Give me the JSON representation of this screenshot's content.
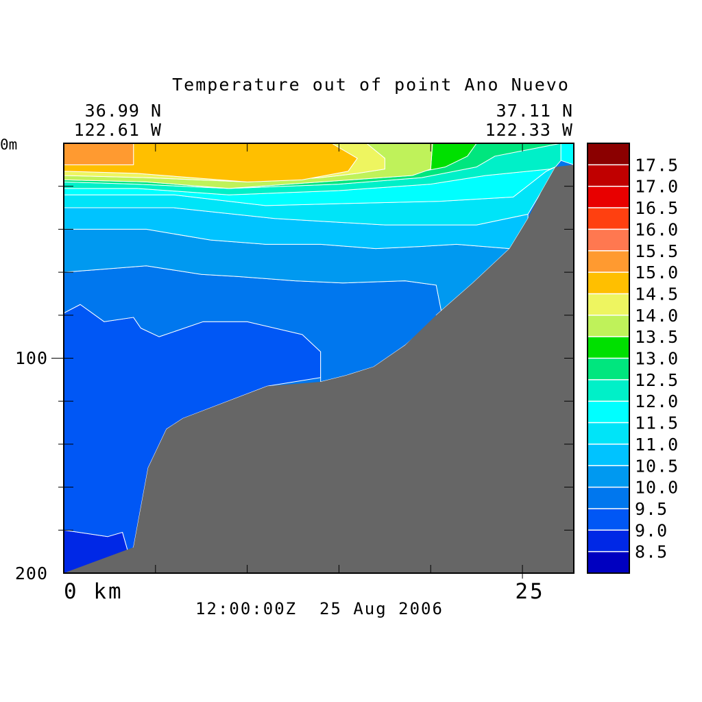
{
  "chart_data": {
    "type": "heatmap",
    "title": "Temperature out of point Ano Nuevo",
    "left_endpoint": {
      "lat": "36.99 N",
      "lon": "122.61 W"
    },
    "right_endpoint": {
      "lat": "37.11 N",
      "lon": "122.33 W"
    },
    "y_axis": {
      "unit_label": "0m",
      "tick_labels": [
        "100",
        "200"
      ],
      "range": [
        0,
        200
      ],
      "inverted": true,
      "unit": "m"
    },
    "x_axis": {
      "start_label": "0 km",
      "end_label": "25",
      "range": [
        0,
        27.8
      ],
      "unit": "km"
    },
    "timestamp": "12:00:00Z  25 Aug 2006",
    "colorbar": {
      "levels": [
        "17.5",
        "17.0",
        "16.5",
        "16.0",
        "15.5",
        "15.0",
        "14.5",
        "14.0",
        "13.5",
        "13.0",
        "12.5",
        "12.0",
        "11.5",
        "11.0",
        "10.5",
        "10.0",
        "9.5",
        "9.0",
        "8.5"
      ],
      "colors": [
        "#8b0000",
        "#c00000",
        "#e80000",
        "#ff4010",
        "#ff7850",
        "#ff9a30",
        "#ffbf00",
        "#eef560",
        "#bff25a",
        "#00e000",
        "#00e67e",
        "#00f0c8",
        "#00ffff",
        "#00e4f8",
        "#00c3ff",
        "#0099f0",
        "#0077ee",
        "#0057f5",
        "#0028e6",
        "#0000c0"
      ]
    },
    "bathymetry_color": "#666666",
    "section_profile": [
      {
        "x": 0.0,
        "bottom_depth": 200
      },
      {
        "x": 3.8,
        "bottom_depth": 188
      },
      {
        "x": 4.6,
        "bottom_depth": 151
      },
      {
        "x": 5.6,
        "bottom_depth": 133
      },
      {
        "x": 6.5,
        "bottom_depth": 128
      },
      {
        "x": 11.1,
        "bottom_depth": 113
      },
      {
        "x": 14.0,
        "bottom_depth": 111
      },
      {
        "x": 15.4,
        "bottom_depth": 108
      },
      {
        "x": 16.9,
        "bottom_depth": 104
      },
      {
        "x": 18.6,
        "bottom_depth": 94
      },
      {
        "x": 20.3,
        "bottom_depth": 80
      },
      {
        "x": 22.3,
        "bottom_depth": 65
      },
      {
        "x": 24.3,
        "bottom_depth": 49
      },
      {
        "x": 25.3,
        "bottom_depth": 35
      },
      {
        "x": 26.0,
        "bottom_depth": 23
      },
      {
        "x": 26.8,
        "bottom_depth": 11
      },
      {
        "x": 27.8,
        "bottom_depth": 10
      }
    ],
    "temperature_zones": [
      {
        "level": "8.5-9.0",
        "outline": [
          [
            0.0,
            180
          ],
          [
            2.4,
            183
          ],
          [
            3.2,
            181
          ],
          [
            3.5,
            190
          ],
          [
            3.0,
            200
          ],
          [
            0.0,
            200
          ]
        ]
      },
      {
        "level": "9.0-9.5",
        "outline": [
          [
            0.0,
            79
          ],
          [
            0.9,
            75
          ],
          [
            2.2,
            83
          ],
          [
            3.8,
            81
          ],
          [
            4.2,
            86
          ],
          [
            5.2,
            90
          ],
          [
            7.6,
            83
          ],
          [
            10.0,
            83
          ],
          [
            13.0,
            89
          ],
          [
            14.0,
            97
          ],
          [
            14.0,
            109
          ],
          [
            11.1,
            113
          ],
          [
            6.5,
            128
          ],
          [
            5.6,
            133
          ],
          [
            4.6,
            151
          ],
          [
            3.8,
            188
          ],
          [
            3.5,
            190
          ],
          [
            3.2,
            181
          ],
          [
            2.4,
            183
          ],
          [
            0.0,
            180
          ]
        ]
      },
      {
        "level": "9.5-10.0",
        "outline": [
          [
            0.0,
            60
          ],
          [
            4.5,
            57
          ],
          [
            7.5,
            61
          ],
          [
            9.5,
            62
          ],
          [
            12.6,
            64
          ],
          [
            15.2,
            65
          ],
          [
            18.6,
            64
          ],
          [
            20.3,
            66
          ],
          [
            20.6,
            79
          ],
          [
            18.6,
            94
          ],
          [
            16.9,
            104
          ],
          [
            15.4,
            108
          ],
          [
            14.0,
            111
          ],
          [
            14.0,
            97
          ],
          [
            13.0,
            89
          ],
          [
            10.0,
            83
          ],
          [
            7.6,
            83
          ],
          [
            5.2,
            90
          ],
          [
            4.2,
            86
          ],
          [
            3.8,
            81
          ],
          [
            2.2,
            83
          ],
          [
            0.9,
            75
          ],
          [
            0.0,
            79
          ]
        ]
      },
      {
        "level": "10.0-10.5",
        "outline": [
          [
            0.0,
            40
          ],
          [
            4.5,
            40
          ],
          [
            8.0,
            45
          ],
          [
            11.0,
            47
          ],
          [
            14.0,
            47
          ],
          [
            17.0,
            49
          ],
          [
            19.5,
            48
          ],
          [
            21.4,
            47
          ],
          [
            24.3,
            49
          ],
          [
            22.3,
            65
          ],
          [
            20.3,
            80
          ],
          [
            20.6,
            79
          ],
          [
            20.3,
            66
          ],
          [
            18.6,
            64
          ],
          [
            15.2,
            65
          ],
          [
            12.6,
            64
          ],
          [
            9.5,
            62
          ],
          [
            7.5,
            61
          ],
          [
            4.5,
            57
          ],
          [
            0.0,
            60
          ]
        ]
      },
      {
        "level": "10.5-11.0",
        "outline": [
          [
            0.0,
            30
          ],
          [
            6.0,
            30
          ],
          [
            11.5,
            35
          ],
          [
            17.5,
            38
          ],
          [
            22.5,
            38
          ],
          [
            25.3,
            33
          ],
          [
            25.3,
            35
          ],
          [
            24.3,
            49
          ],
          [
            21.4,
            47
          ],
          [
            19.5,
            48
          ],
          [
            17.0,
            49
          ],
          [
            14.0,
            47
          ],
          [
            11.0,
            47
          ],
          [
            8.0,
            45
          ],
          [
            4.5,
            40
          ],
          [
            0.0,
            40
          ]
        ]
      },
      {
        "level": "11.0-11.5",
        "outline": [
          [
            0.0,
            24
          ],
          [
            6.0,
            24
          ],
          [
            11.0,
            29
          ],
          [
            15.5,
            28
          ],
          [
            20.5,
            27
          ],
          [
            24.5,
            25
          ],
          [
            26.3,
            13
          ],
          [
            26.8,
            11
          ],
          [
            26.0,
            23
          ],
          [
            25.3,
            33
          ],
          [
            22.5,
            38
          ],
          [
            17.5,
            38
          ],
          [
            11.5,
            35
          ],
          [
            6.0,
            30
          ],
          [
            0.0,
            30
          ]
        ]
      },
      {
        "level": "11.5-12.0",
        "outline": [
          [
            0.0,
            21
          ],
          [
            4.0,
            21
          ],
          [
            9.0,
            24
          ],
          [
            15.0,
            22
          ],
          [
            20.0,
            19
          ],
          [
            23.0,
            15
          ],
          [
            26.5,
            12
          ],
          [
            26.8,
            11
          ],
          [
            26.3,
            13
          ],
          [
            24.5,
            25
          ],
          [
            20.5,
            27
          ],
          [
            15.5,
            28
          ],
          [
            11.0,
            29
          ],
          [
            6.0,
            24
          ],
          [
            0.0,
            24
          ]
        ]
      },
      {
        "level": "12.0-12.5",
        "outline": [
          [
            0.0,
            18
          ],
          [
            4.0,
            19
          ],
          [
            9.0,
            21
          ],
          [
            15.0,
            19
          ],
          [
            19.5,
            16
          ],
          [
            22.5,
            11
          ],
          [
            23.5,
            6
          ],
          [
            27.1,
            0
          ],
          [
            27.1,
            8
          ],
          [
            26.8,
            11
          ],
          [
            26.5,
            12
          ],
          [
            23.0,
            15
          ],
          [
            20.0,
            19
          ],
          [
            15.0,
            22
          ],
          [
            9.0,
            24
          ],
          [
            4.0,
            21
          ],
          [
            0.0,
            21
          ]
        ]
      },
      {
        "level": "12.5-13.0",
        "outline": [
          [
            0.0,
            16
          ],
          [
            4.5,
            17
          ],
          [
            9.0,
            19
          ],
          [
            14.0,
            17
          ],
          [
            19.0,
            14
          ],
          [
            20.8,
            11
          ],
          [
            22.0,
            6
          ],
          [
            22.5,
            0
          ],
          [
            27.1,
            0
          ],
          [
            23.5,
            6
          ],
          [
            22.5,
            11
          ],
          [
            19.5,
            16
          ],
          [
            15.0,
            19
          ],
          [
            9.0,
            21
          ],
          [
            4.0,
            19
          ],
          [
            0.0,
            18
          ]
        ]
      },
      {
        "level": "13.0-13.5",
        "outline": [
          [
            0.0,
            17
          ],
          [
            4.5,
            18
          ],
          [
            9.0,
            21
          ],
          [
            14.0,
            18
          ],
          [
            19.0,
            15
          ],
          [
            20.0,
            12
          ],
          [
            20.1,
            0
          ],
          [
            22.5,
            0
          ],
          [
            22.0,
            6
          ],
          [
            20.8,
            11
          ],
          [
            19.0,
            14
          ],
          [
            14.0,
            17
          ],
          [
            9.0,
            19
          ],
          [
            4.5,
            17
          ],
          [
            0.0,
            16
          ]
        ]
      },
      {
        "level": "13.5-14.0",
        "outline": [
          [
            0.0,
            15
          ],
          [
            4.5,
            16
          ],
          [
            10.0,
            18
          ],
          [
            14.0,
            16
          ],
          [
            16.0,
            14
          ],
          [
            17.5,
            12
          ],
          [
            17.5,
            7
          ],
          [
            16.5,
            0
          ],
          [
            20.1,
            0
          ],
          [
            20.0,
            12
          ],
          [
            19.0,
            15
          ],
          [
            14.0,
            18
          ],
          [
            9.0,
            21
          ],
          [
            4.5,
            18
          ],
          [
            0.0,
            17
          ]
        ]
      },
      {
        "level": "14.0-14.5",
        "outline": [
          [
            0.0,
            13
          ],
          [
            4.0,
            14
          ],
          [
            10.0,
            18
          ],
          [
            13.0,
            17
          ],
          [
            15.5,
            13
          ],
          [
            16.0,
            7
          ],
          [
            14.6,
            0
          ],
          [
            16.5,
            0
          ],
          [
            17.5,
            7
          ],
          [
            17.5,
            12
          ],
          [
            16.0,
            14
          ],
          [
            14.0,
            16
          ],
          [
            10.0,
            18
          ],
          [
            4.5,
            16
          ],
          [
            0.0,
            15
          ]
        ]
      },
      {
        "level": "14.5-15.0",
        "outline": [
          [
            0.0,
            0
          ],
          [
            14.6,
            0
          ],
          [
            16.0,
            7
          ],
          [
            15.5,
            13
          ],
          [
            13.0,
            17
          ],
          [
            10.0,
            18
          ],
          [
            4.0,
            14
          ],
          [
            0.0,
            13
          ],
          [
            0.0,
            10
          ],
          [
            3.8,
            10
          ],
          [
            3.8,
            0
          ]
        ]
      },
      {
        "level": "15.0-15.5",
        "outline": [
          [
            0.0,
            0
          ],
          [
            3.8,
            0
          ],
          [
            3.8,
            10
          ],
          [
            0.0,
            10
          ]
        ]
      },
      {
        "level": "11.5-12.0",
        "outline": [
          [
            26.3,
            0
          ],
          [
            27.8,
            0
          ],
          [
            27.8,
            10
          ],
          [
            27.1,
            8
          ],
          [
            27.1,
            0
          ]
        ]
      }
    ]
  }
}
